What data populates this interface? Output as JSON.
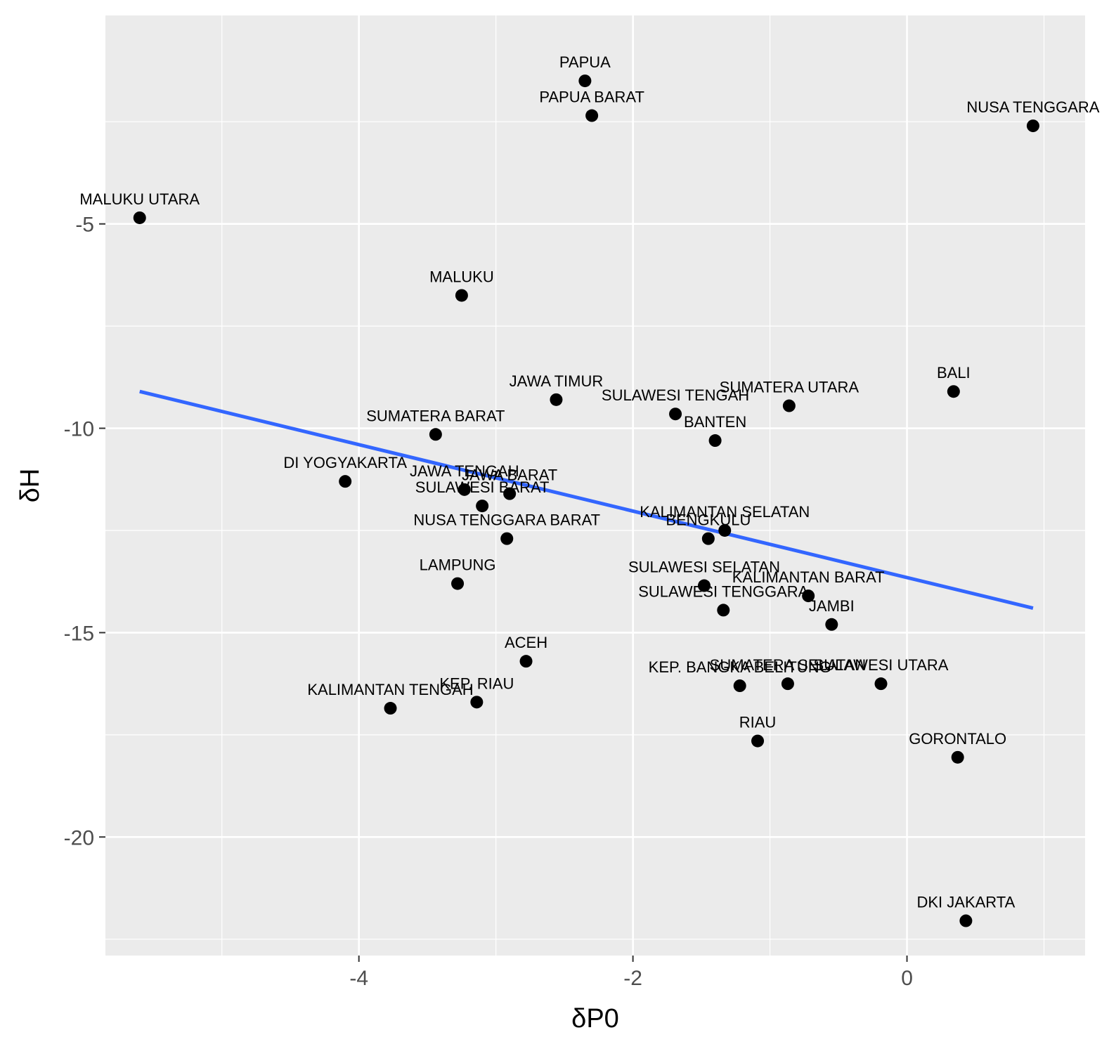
{
  "chart_data": {
    "type": "scatter",
    "xlabel": "δP0",
    "ylabel": "δH",
    "xlim": [
      -5.85,
      1.3
    ],
    "ylim": [
      -22.9,
      0.1
    ],
    "x_ticks": [
      -4,
      -2,
      0
    ],
    "x_tick_labels": [
      "-4",
      "-2",
      "0"
    ],
    "y_ticks": [
      -5,
      -10,
      -15,
      -20
    ],
    "y_tick_labels": [
      "-5",
      "-10",
      "-15",
      "-20"
    ],
    "grid": true,
    "background": "#ebebeb",
    "point_color": "#000000",
    "trend_color": "#3366ff",
    "points": [
      {
        "label": "PAPUA",
        "x": -2.35,
        "y": -1.5
      },
      {
        "label": "PAPUA BARAT",
        "x": -2.3,
        "y": -2.35
      },
      {
        "label": "NUSA TENGGARA",
        "x": 0.92,
        "y": -2.6
      },
      {
        "label": "MALUKU UTARA",
        "x": -5.6,
        "y": -4.85
      },
      {
        "label": "MALUKU",
        "x": -3.25,
        "y": -6.75
      },
      {
        "label": "BALI",
        "x": 0.34,
        "y": -9.1
      },
      {
        "label": "JAWA TIMUR",
        "x": -2.56,
        "y": -9.3
      },
      {
        "label": "SUMATERA UTARA",
        "x": -0.86,
        "y": -9.45
      },
      {
        "label": "SULAWESI TENGAH",
        "x": -1.69,
        "y": -9.65
      },
      {
        "label": "BANTEN",
        "x": -1.4,
        "y": -10.3
      },
      {
        "label": "SUMATERA BARAT",
        "x": -3.44,
        "y": -10.15
      },
      {
        "label": "DI YOGYAKARTA",
        "x": -4.1,
        "y": -11.3
      },
      {
        "label": "JAWA TENGAH",
        "x": -3.23,
        "y": -11.5
      },
      {
        "label": "JAWA BARAT",
        "x": -2.9,
        "y": -11.6
      },
      {
        "label": "SULAWESI BARAT",
        "x": -3.1,
        "y": -11.9
      },
      {
        "label": "NUSA TENGGARA BARAT",
        "x": -2.92,
        "y": -12.7
      },
      {
        "label": "KALIMANTAN SELATAN",
        "x": -1.33,
        "y": -12.5
      },
      {
        "label": "BENGKULU",
        "x": -1.45,
        "y": -12.7
      },
      {
        "label": "LAMPUNG",
        "x": -3.28,
        "y": -13.8
      },
      {
        "label": "SULAWESI SELATAN",
        "x": -1.48,
        "y": -13.85
      },
      {
        "label": "KALIMANTAN BARAT",
        "x": -0.72,
        "y": -14.1
      },
      {
        "label": "SULAWESI TENGGARA",
        "x": -1.34,
        "y": -14.45
      },
      {
        "label": "JAMBI",
        "x": -0.55,
        "y": -14.8
      },
      {
        "label": "ACEH",
        "x": -2.78,
        "y": -15.7
      },
      {
        "label": "KEP. BANGKA BELITUNG",
        "x": -1.22,
        "y": -16.3
      },
      {
        "label": "SUMATERA SELATAN",
        "x": -0.87,
        "y": -16.25
      },
      {
        "label": "SULAWESI UTARA",
        "x": -0.19,
        "y": -16.25
      },
      {
        "label": "KALIMANTAN TENGAH",
        "x": -3.77,
        "y": -16.85
      },
      {
        "label": "KEP. RIAU",
        "x": -3.14,
        "y": -16.7
      },
      {
        "label": "RIAU",
        "x": -1.09,
        "y": -17.65
      },
      {
        "label": "GORONTALO",
        "x": 0.37,
        "y": -18.05
      },
      {
        "label": "DKI JAKARTA",
        "x": 0.43,
        "y": -22.05
      }
    ],
    "trend_line": {
      "x": [
        -5.6,
        0.92
      ],
      "y": [
        -9.1,
        -14.4
      ]
    }
  }
}
